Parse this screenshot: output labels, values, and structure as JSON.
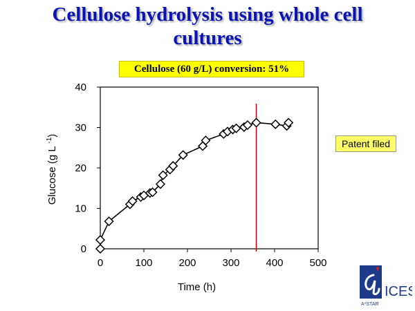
{
  "slide": {
    "title_line1": "Cellulose hydrolysis using whole cell",
    "title_line2": "cultures",
    "conversion_label": "Cellulose (60 g/L) conversion: 51%",
    "patent_label": "Patent filed",
    "logo_text": "ICES",
    "logo_subtext": "A*STAR"
  },
  "colors": {
    "title": "#0a14b4",
    "marker_line": "#c00000",
    "highlight_box": "#ffff00",
    "patent_box": "#ffff66",
    "logo_blue": "#1e3a8a",
    "logo_red": "#cc1f1f"
  },
  "chart_data": {
    "type": "line",
    "title": "",
    "xlabel": "Time (h)",
    "ylabel": "Glucose (g L",
    "ylabel_sup": "-1",
    "ylabel_suffix": ")",
    "xlim": [
      0,
      500
    ],
    "ylim": [
      0,
      40
    ],
    "xticks": [
      0,
      100,
      200,
      300,
      400,
      500
    ],
    "yticks": [
      0,
      10,
      20,
      30,
      40
    ],
    "grid": false,
    "legend": "none",
    "marker": "diamond",
    "vertical_line_x": 358,
    "series": [
      {
        "points": [
          [
            0,
            0
          ],
          [
            0,
            2.2
          ],
          [
            20,
            6.8
          ],
          [
            68,
            11.0
          ],
          [
            74,
            11.8
          ],
          [
            93,
            12.8
          ],
          [
            100,
            13.2
          ],
          [
            114,
            13.8
          ],
          [
            120,
            14.0
          ],
          [
            138,
            16.0
          ],
          [
            144,
            18.2
          ],
          [
            160,
            19.6
          ],
          [
            167,
            20.5
          ],
          [
            190,
            23.2
          ],
          [
            235,
            25.4
          ],
          [
            242,
            26.8
          ],
          [
            283,
            28.4
          ],
          [
            292,
            29.0
          ],
          [
            304,
            29.5
          ],
          [
            312,
            29.8
          ],
          [
            330,
            30.1
          ],
          [
            338,
            30.6
          ],
          [
            358,
            31.2
          ],
          [
            402,
            30.8
          ],
          [
            428,
            30.4
          ],
          [
            432,
            31.2
          ]
        ]
      }
    ]
  }
}
